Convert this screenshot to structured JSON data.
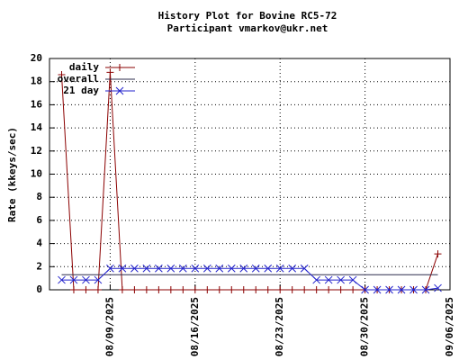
{
  "chart_data": {
    "type": "line",
    "title": "History Plot for Bovine RC5-72",
    "subtitle": "Participant vmarkov@ukr.net",
    "y_label": "Rate (kkeys/sec)",
    "x": [
      "2025-08-05",
      "2025-08-06",
      "2025-08-07",
      "2025-08-08",
      "2025-08-09",
      "2025-08-10",
      "2025-08-11",
      "2025-08-12",
      "2025-08-13",
      "2025-08-14",
      "2025-08-15",
      "2025-08-16",
      "2025-08-17",
      "2025-08-18",
      "2025-08-19",
      "2025-08-20",
      "2025-08-21",
      "2025-08-22",
      "2025-08-23",
      "2025-08-24",
      "2025-08-25",
      "2025-08-26",
      "2025-08-27",
      "2025-08-28",
      "2025-08-29",
      "2025-08-30",
      "2025-08-31",
      "2025-09-01",
      "2025-09-02",
      "2025-09-03",
      "2025-09-04",
      "2025-09-05"
    ],
    "series": [
      {
        "name": "daily",
        "color": "#8b0000",
        "marker": "plus",
        "values": [
          18.6,
          0,
          0,
          0,
          18.8,
          0,
          0,
          0,
          0,
          0,
          0,
          0,
          0,
          0,
          0,
          0,
          0,
          0,
          0,
          0,
          0,
          0,
          0,
          0,
          0,
          0,
          0,
          0,
          0,
          0,
          0,
          3.1
        ]
      },
      {
        "name": "overall",
        "color": "#2f2f4f",
        "marker": "none",
        "values": [
          1.3,
          1.3,
          1.3,
          1.3,
          1.3,
          1.3,
          1.3,
          1.3,
          1.3,
          1.3,
          1.3,
          1.3,
          1.3,
          1.3,
          1.3,
          1.3,
          1.3,
          1.3,
          1.3,
          1.3,
          1.3,
          1.3,
          1.3,
          1.3,
          1.3,
          1.3,
          1.3,
          1.3,
          1.3,
          1.3,
          1.3,
          1.3
        ]
      },
      {
        "name": "21 day",
        "color": "#2222cc",
        "marker": "cross",
        "values": [
          0.85,
          0.85,
          0.85,
          0.85,
          1.85,
          1.85,
          1.85,
          1.85,
          1.85,
          1.85,
          1.85,
          1.85,
          1.85,
          1.85,
          1.85,
          1.85,
          1.85,
          1.85,
          1.85,
          1.85,
          1.85,
          0.85,
          0.85,
          0.85,
          0.85,
          0,
          0,
          0,
          0,
          0,
          0,
          0.15
        ]
      }
    ],
    "xlim": [
      "2025-08-04",
      "2025-09-06"
    ],
    "xticks": [
      {
        "value": "2025-08-09",
        "label": "08/09/2025"
      },
      {
        "value": "2025-08-16",
        "label": "08/16/2025"
      },
      {
        "value": "2025-08-23",
        "label": "08/23/2025"
      },
      {
        "value": "2025-08-30",
        "label": "08/30/2025"
      },
      {
        "value": "2025-09-06",
        "label": "09/06/2025"
      }
    ],
    "ylim": [
      0,
      20
    ],
    "yticks": [
      0,
      2,
      4,
      6,
      8,
      10,
      12,
      14,
      16,
      18,
      20
    ],
    "grid": true,
    "legend": "top-left"
  }
}
